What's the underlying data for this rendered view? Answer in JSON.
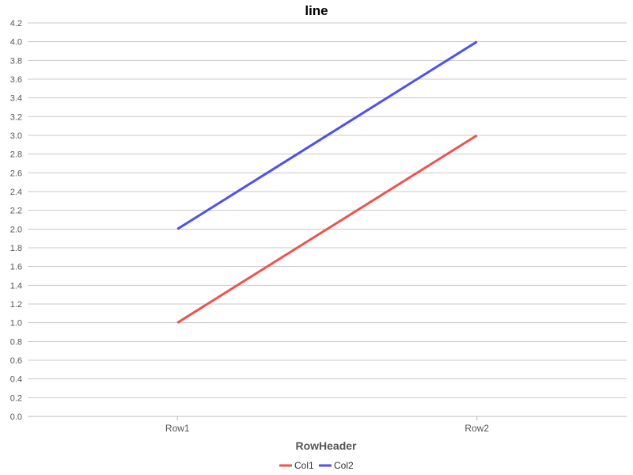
{
  "chart_data": {
    "type": "line",
    "title": "line",
    "xlabel": "RowHeader",
    "ylabel": "",
    "categories": [
      "Row1",
      "Row2"
    ],
    "series": [
      {
        "name": "Col1",
        "values": [
          1.0,
          3.0
        ],
        "color": "#f0524f"
      },
      {
        "name": "Col2",
        "values": [
          2.0,
          4.0
        ],
        "color": "#5050f0"
      }
    ],
    "ylim": [
      0,
      4.2
    ],
    "ytick_step": 0.2,
    "ytick_labels": [
      "0.0",
      "0.2",
      "0.4",
      "0.6",
      "0.8",
      "1.0",
      "1.2",
      "1.4",
      "1.6",
      "1.8",
      "2.0",
      "2.2",
      "2.4",
      "2.6",
      "2.8",
      "3.0",
      "3.2",
      "3.4",
      "3.6",
      "3.8",
      "4.0",
      "4.2"
    ],
    "grid": true,
    "legend_position": "bottom-center"
  }
}
